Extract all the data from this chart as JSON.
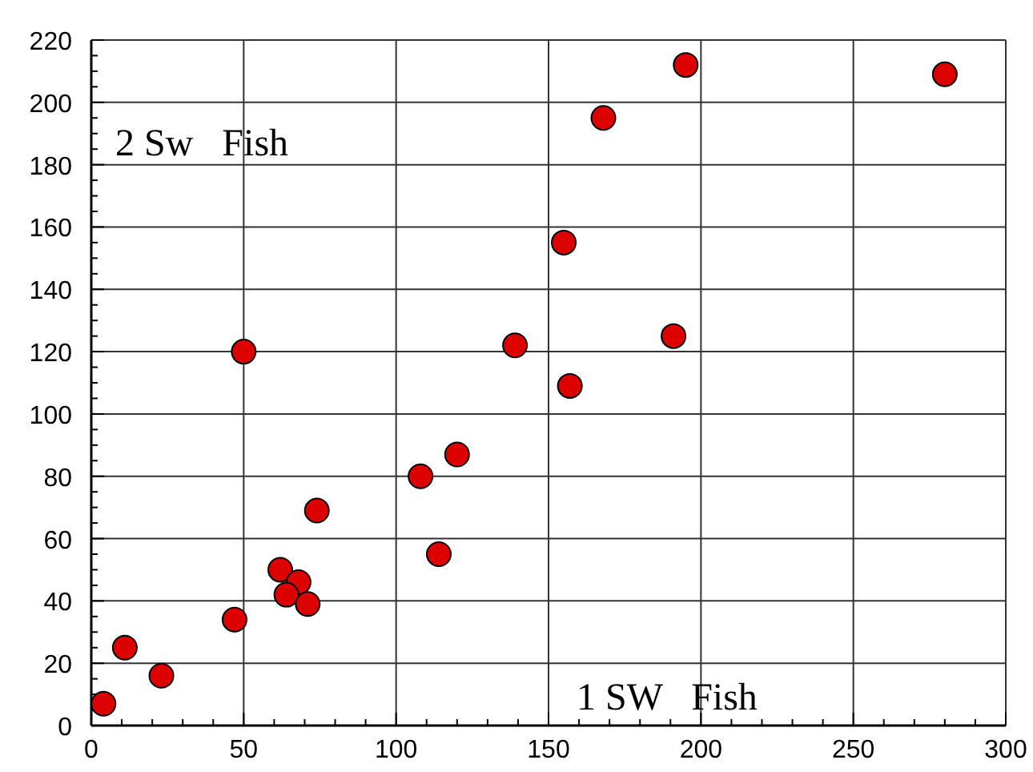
{
  "chart_data": {
    "type": "scatter",
    "x": [
      4,
      11,
      23,
      47,
      50,
      62,
      68,
      64,
      71,
      74,
      108,
      120,
      114,
      139,
      155,
      168,
      195,
      157,
      191,
      280
    ],
    "series": [
      {
        "color": "#dd0000",
        "values": [
          7,
          25,
          16,
          34,
          120,
          50,
          46,
          42,
          39,
          69,
          80,
          87,
          55,
          122,
          155,
          195,
          212,
          109,
          125,
          209
        ]
      }
    ],
    "marker": "circle",
    "grid": true,
    "xlim": [
      0,
      300
    ],
    "xticks": [
      0,
      {
        "value": 10,
        "label": null
      },
      {
        "value": 20,
        "label": null
      },
      {
        "value": 30,
        "label": null
      },
      {
        "value": 40,
        "label": null
      },
      50,
      {
        "value": 60,
        "label": null
      },
      {
        "value": 70,
        "label": null
      },
      {
        "value": 80,
        "label": null
      },
      {
        "value": 90,
        "label": null
      },
      100,
      {
        "value": 110,
        "label": null
      },
      {
        "value": 120,
        "label": null
      },
      {
        "value": 130,
        "label": null
      },
      {
        "value": 140,
        "label": null
      },
      150,
      {
        "value": 160,
        "label": null
      },
      {
        "value": 170,
        "label": null
      },
      {
        "value": 180,
        "label": null
      },
      {
        "value": 190,
        "label": null
      },
      200,
      {
        "value": 210,
        "label": null
      },
      {
        "value": 220,
        "label": null
      },
      {
        "value": 230,
        "label": null
      },
      {
        "value": 240,
        "label": null
      },
      250,
      {
        "value": 260,
        "label": null
      },
      {
        "value": 270,
        "label": null
      },
      {
        "value": 280,
        "label": null
      },
      {
        "value": 290,
        "label": null
      },
      300
    ],
    "ylim": [
      0,
      220
    ],
    "yticks": [
      0,
      {
        "value": 5,
        "label": null
      },
      {
        "value": 10,
        "label": null
      },
      {
        "value": 15,
        "label": null
      },
      20,
      {
        "value": 25,
        "label": null
      },
      {
        "value": 30,
        "label": null
      },
      {
        "value": 35,
        "label": null
      },
      40,
      {
        "value": 45,
        "label": null
      },
      {
        "value": 50,
        "label": null
      },
      {
        "value": 55,
        "label": null
      },
      60,
      {
        "value": 65,
        "label": null
      },
      {
        "value": 70,
        "label": null
      },
      {
        "value": 75,
        "label": null
      },
      80,
      {
        "value": 85,
        "label": null
      },
      {
        "value": 90,
        "label": null
      },
      {
        "value": 95,
        "label": null
      },
      100,
      {
        "value": 105,
        "label": null
      },
      {
        "value": 110,
        "label": null
      },
      {
        "value": 115,
        "label": null
      },
      120,
      {
        "value": 125,
        "label": null
      },
      {
        "value": 130,
        "label": null
      },
      {
        "value": 135,
        "label": null
      },
      140,
      {
        "value": 145,
        "label": null
      },
      {
        "value": 150,
        "label": null
      },
      {
        "value": 155,
        "label": null
      },
      160,
      {
        "value": 165,
        "label": null
      },
      {
        "value": 170,
        "label": null
      },
      {
        "value": 175,
        "label": null
      },
      180,
      {
        "value": 185,
        "label": null
      },
      {
        "value": 190,
        "label": null
      },
      {
        "value": 195,
        "label": null
      },
      200,
      {
        "value": 205,
        "label": null
      },
      {
        "value": 210,
        "label": null
      },
      {
        "value": 215,
        "label": null
      },
      220
    ],
    "annotations": [
      "2 Sw   Fish",
      "1 SW   Fish"
    ]
  }
}
